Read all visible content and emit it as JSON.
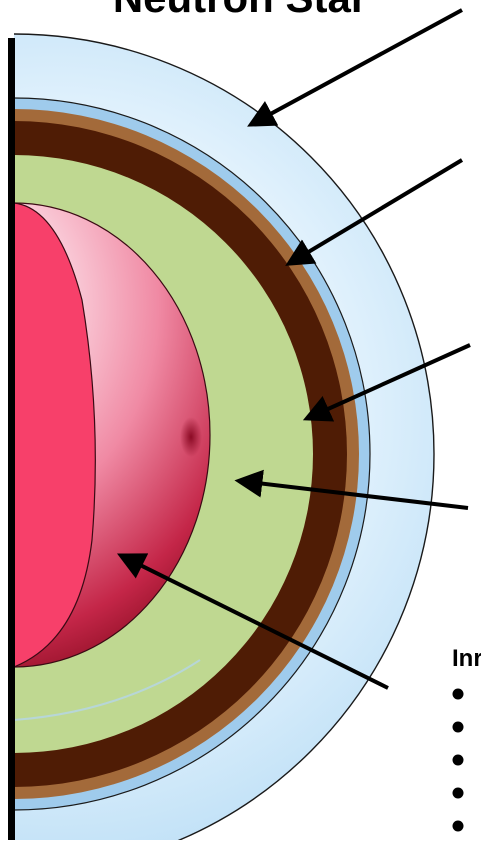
{
  "title": "Neutron Star",
  "layers": [
    {
      "id": "atmosphere",
      "color": "#bfe1f7"
    },
    {
      "id": "outer-crust",
      "color": "#a36a3a"
    },
    {
      "id": "inner-crust",
      "color": "#4f1c05"
    },
    {
      "id": "outer-core",
      "color": "#bfd891"
    },
    {
      "id": "inner-core",
      "color": "#d9466b"
    }
  ],
  "legend": {
    "heading": "Inr",
    "bullet_count": 6
  },
  "colors": {
    "arrow": "#000000",
    "section_face": "#f7406a",
    "axis": "#000000"
  },
  "icons": [
    "arrow-pointer",
    "bullet-dot"
  ]
}
